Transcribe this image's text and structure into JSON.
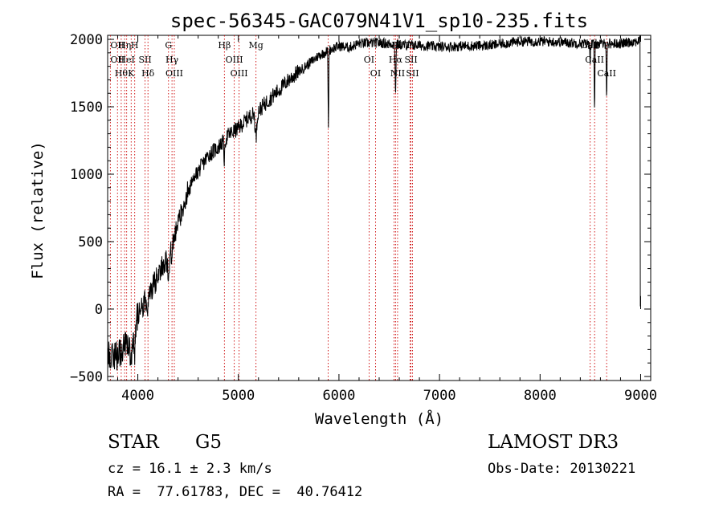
{
  "chart_data": {
    "type": "line",
    "title": "spec-56345-GAC079N41V1_sp10-235.fits",
    "xlabel": "Wavelength (Å)",
    "ylabel": "Flux (relative)",
    "xlim": [
      3700,
      9100
    ],
    "ylim": [
      -530,
      2030
    ],
    "xticks": [
      4000,
      5000,
      6000,
      7000,
      8000,
      9000
    ],
    "yticks": [
      -500,
      0,
      500,
      1000,
      1500,
      2000
    ],
    "continuum_anchors": [
      [
        3700,
        -330
      ],
      [
        3800,
        -350
      ],
      [
        3900,
        -250
      ],
      [
        4000,
        -50
      ],
      [
        4100,
        100
      ],
      [
        4200,
        240
      ],
      [
        4300,
        400
      ],
      [
        4400,
        620
      ],
      [
        4500,
        880
      ],
      [
        4600,
        1020
      ],
      [
        4700,
        1140
      ],
      [
        4800,
        1200
      ],
      [
        4900,
        1290
      ],
      [
        5000,
        1340
      ],
      [
        5100,
        1420
      ],
      [
        5200,
        1470
      ],
      [
        5300,
        1550
      ],
      [
        5400,
        1620
      ],
      [
        5500,
        1700
      ],
      [
        5600,
        1760
      ],
      [
        5700,
        1820
      ],
      [
        5800,
        1880
      ],
      [
        5900,
        1920
      ],
      [
        6000,
        1950
      ],
      [
        6100,
        1940
      ],
      [
        6200,
        1970
      ],
      [
        6400,
        1975
      ],
      [
        6600,
        1960
      ],
      [
        6800,
        1955
      ],
      [
        7000,
        1945
      ],
      [
        7200,
        1950
      ],
      [
        7500,
        1955
      ],
      [
        7800,
        1985
      ],
      [
        8000,
        1985
      ],
      [
        8200,
        1980
      ],
      [
        8500,
        1965
      ],
      [
        8800,
        1970
      ],
      [
        8950,
        1985
      ],
      [
        8990,
        1990
      ]
    ],
    "absorption_features": [
      {
        "wave": 3934,
        "depth": 250,
        "width": 8
      },
      {
        "wave": 3969,
        "depth": 200,
        "width": 8
      },
      {
        "wave": 4101,
        "depth": 100,
        "width": 6
      },
      {
        "wave": 4305,
        "depth": 180,
        "width": 8
      },
      {
        "wave": 4340,
        "depth": 120,
        "width": 6
      },
      {
        "wave": 4861,
        "depth": 150,
        "width": 5
      },
      {
        "wave": 5175,
        "depth": 180,
        "width": 8
      },
      {
        "wave": 5895,
        "depth": 600,
        "width": 3
      },
      {
        "wave": 6563,
        "depth": 350,
        "width": 4
      },
      {
        "wave": 8498,
        "depth": 120,
        "width": 3
      },
      {
        "wave": 8542,
        "depth": 500,
        "width": 3
      },
      {
        "wave": 8662,
        "depth": 400,
        "width": 3
      }
    ],
    "edge_dropout": {
      "start": 8995,
      "end": 9000,
      "to": 0
    },
    "noise": [
      {
        "until": 4000,
        "amp": 110
      },
      {
        "until": 4500,
        "amp": 90
      },
      {
        "until": 5600,
        "amp": 60
      },
      {
        "until": 9100,
        "amp": 38
      }
    ],
    "line_markers": [
      {
        "wave": 3727,
        "labels": []
      },
      {
        "wave": 3798,
        "labels": [
          "OII",
          "OII"
        ]
      },
      {
        "wave": 3835,
        "labels": [
          "Hθ"
        ]
      },
      {
        "wave": 3869,
        "labels": [
          "Hη"
        ]
      },
      {
        "wave": 3889,
        "labels": [
          "HeI"
        ]
      },
      {
        "wave": 3934,
        "labels": [
          "K"
        ]
      },
      {
        "wave": 3969,
        "labels": [
          "H"
        ]
      },
      {
        "wave": 4072,
        "labels": [
          "SII"
        ]
      },
      {
        "wave": 4101,
        "labels": [
          "Hδ"
        ]
      },
      {
        "wave": 4305,
        "labels": [
          "G"
        ]
      },
      {
        "wave": 4340,
        "labels": [
          "Hγ"
        ]
      },
      {
        "wave": 4363,
        "labels": [
          "OIII"
        ]
      },
      {
        "wave": 4861,
        "labels": [
          "Hβ"
        ]
      },
      {
        "wave": 4959,
        "labels": [
          "OIII"
        ]
      },
      {
        "wave": 5007,
        "labels": [
          "OIII"
        ]
      },
      {
        "wave": 5175,
        "labels": [
          "Mg"
        ]
      },
      {
        "wave": 5893,
        "labels": []
      },
      {
        "wave": 6300,
        "labels": [
          "OI"
        ]
      },
      {
        "wave": 6364,
        "labels": [
          "OI"
        ]
      },
      {
        "wave": 6548,
        "labels": [
          "NII"
        ]
      },
      {
        "wave": 6563,
        "labels": [
          "Hα"
        ]
      },
      {
        "wave": 6583,
        "labels": [
          "NII"
        ]
      },
      {
        "wave": 6707,
        "labels": [
          "Li"
        ]
      },
      {
        "wave": 6716,
        "labels": [
          "SII"
        ]
      },
      {
        "wave": 6731,
        "labels": [
          "SII"
        ]
      },
      {
        "wave": 8498,
        "labels": [
          "CaII"
        ]
      },
      {
        "wave": 8542,
        "labels": [
          "CaII"
        ]
      },
      {
        "wave": 8662,
        "labels": [
          "CaII"
        ]
      }
    ],
    "marker_color": "#cc0000"
  },
  "info": {
    "object_class": "STAR",
    "subclass": "G5",
    "survey": "LAMOST DR3",
    "cz_label": "cz = 16.1 ± 2.3 km/s",
    "obs_date_label": "Obs-Date: 20130221",
    "coords_label": "RA =  77.61783, DEC =  40.76412"
  }
}
